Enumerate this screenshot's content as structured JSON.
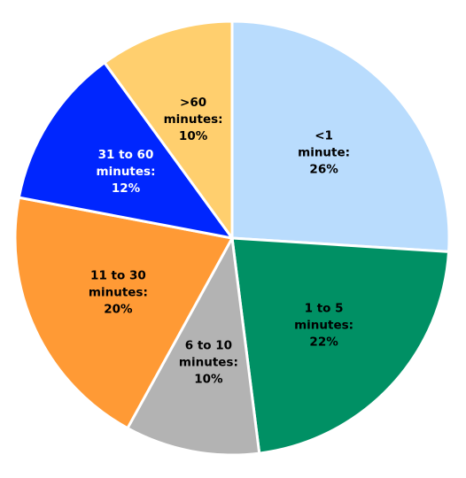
{
  "chart_data": {
    "type": "pie",
    "title": "",
    "slices": [
      {
        "lines": [
          "<1",
          "minute:",
          "26%"
        ],
        "value": 26,
        "color": "#b9dcfd",
        "label_color": "#000000"
      },
      {
        "lines": [
          "1 to 5",
          "minutes:",
          "22%"
        ],
        "value": 22,
        "color": "#009064",
        "label_color": "#000000"
      },
      {
        "lines": [
          "6 to 10",
          "minutes:",
          "10%"
        ],
        "value": 10,
        "color": "#b3b3b3",
        "label_color": "#000000"
      },
      {
        "lines": [
          "11 to 30",
          "minutes:",
          "20%"
        ],
        "value": 20,
        "color": "#ff9a35",
        "label_color": "#000000"
      },
      {
        "lines": [
          "31 to 60",
          "minutes:",
          "12%"
        ],
        "value": 12,
        "color": "#0026fe",
        "label_color": "#ffffff"
      },
      {
        "lines": [
          ">60",
          "minutes:",
          "10%"
        ],
        "value": 10,
        "color": "#ffcf6e",
        "label_color": "#000000"
      }
    ],
    "start": "12 o'clock",
    "direction": "clockwise",
    "legend": "none"
  }
}
